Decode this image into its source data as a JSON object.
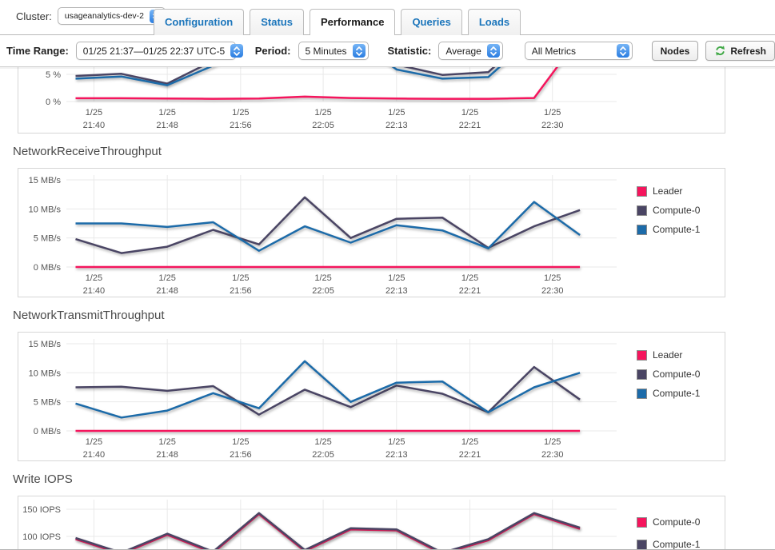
{
  "header": {
    "cluster_label": "Cluster:",
    "cluster_value": "usageanalytics-dev-2",
    "tabs": [
      {
        "label": "Configuration",
        "active": false
      },
      {
        "label": "Status",
        "active": false
      },
      {
        "label": "Performance",
        "active": true
      },
      {
        "label": "Queries",
        "active": false
      },
      {
        "label": "Loads",
        "active": false
      }
    ]
  },
  "toolbar": {
    "time_range_label": "Time Range:",
    "time_range_value": "01/25 21:37—01/25 22:37 UTC-5",
    "period_label": "Period:",
    "period_value": "5 Minutes",
    "statistic_label": "Statistic:",
    "statistic_value": "Average",
    "metrics_value": "All Metrics",
    "nodes_button": "Nodes",
    "refresh_button": "Refresh"
  },
  "colors": {
    "leader": "#f5155d",
    "compute0": "#4a4564",
    "compute1": "#1c6ba9",
    "grid": "#e9e9e9",
    "axis_text": "#555555",
    "tab_link": "#1b75bb"
  },
  "x_ticks": [
    {
      "date": "1/25",
      "time": "21:40",
      "minute": 3
    },
    {
      "date": "1/25",
      "time": "21:48",
      "minute": 11
    },
    {
      "date": "1/25",
      "time": "21:56",
      "minute": 19
    },
    {
      "date": "1/25",
      "time": "22:05",
      "minute": 28
    },
    {
      "date": "1/25",
      "time": "22:13",
      "minute": 36
    },
    {
      "date": "1/25",
      "time": "22:21",
      "minute": 44
    },
    {
      "date": "1/25",
      "time": "22:30",
      "minute": 53
    }
  ],
  "sample_minutes": [
    1,
    6,
    11,
    16,
    21,
    26,
    31,
    36,
    41,
    46,
    51,
    56
  ],
  "chart_data": [
    {
      "type": "line",
      "title": "",
      "clip": "top",
      "y_unit": "%",
      "y_ticks": [
        {
          "value": 5,
          "label": "5 %"
        },
        {
          "value": 0,
          "label": "0 %"
        }
      ],
      "legend": [],
      "series": [
        {
          "name": "Leader",
          "color": "leader",
          "values": [
            0.6,
            0.6,
            0.55,
            0.5,
            0.55,
            0.9,
            0.65,
            0.55,
            0.5,
            0.5,
            0.65,
            12
          ]
        },
        {
          "name": "Compute-0",
          "color": "compute0",
          "values": [
            4.7,
            5.1,
            3.3,
            7.5,
            13,
            13,
            13,
            6.8,
            4.9,
            5.4,
            13,
            13
          ]
        },
        {
          "name": "Compute-1",
          "color": "compute1",
          "values": [
            4.2,
            4.6,
            3.0,
            6.6,
            12,
            12,
            12,
            5.9,
            4.2,
            4.5,
            12,
            12
          ]
        }
      ]
    },
    {
      "type": "line",
      "title": "NetworkReceiveThroughput",
      "clip": "none",
      "y_unit": "MB/s",
      "y_ticks": [
        {
          "value": 15,
          "label": "15 MB/s"
        },
        {
          "value": 10,
          "label": "10 MB/s"
        },
        {
          "value": 5,
          "label": "5 MB/s"
        },
        {
          "value": 0,
          "label": "0 MB/s"
        }
      ],
      "legend": [
        "Leader",
        "Compute-0",
        "Compute-1"
      ],
      "series": [
        {
          "name": "Leader",
          "color": "leader",
          "values": [
            0,
            0,
            0,
            0,
            0,
            0,
            0,
            0,
            0,
            0,
            0,
            0
          ]
        },
        {
          "name": "Compute-0",
          "color": "compute0",
          "values": [
            4.8,
            2.4,
            3.5,
            6.4,
            3.9,
            12,
            5,
            8.3,
            8.5,
            3.3,
            7,
            9.8
          ]
        },
        {
          "name": "Compute-1",
          "color": "compute1",
          "values": [
            7.5,
            7.5,
            6.9,
            7.7,
            2.8,
            7,
            4.2,
            7.2,
            6.3,
            3.2,
            11.2,
            5.5
          ]
        }
      ]
    },
    {
      "type": "line",
      "title": "NetworkTransmitThroughput",
      "clip": "none",
      "y_unit": "MB/s",
      "y_ticks": [
        {
          "value": 15,
          "label": "15 MB/s"
        },
        {
          "value": 10,
          "label": "10 MB/s"
        },
        {
          "value": 5,
          "label": "5 MB/s"
        },
        {
          "value": 0,
          "label": "0 MB/s"
        }
      ],
      "legend": [
        "Leader",
        "Compute-0",
        "Compute-1"
      ],
      "series": [
        {
          "name": "Leader",
          "color": "leader",
          "values": [
            0,
            0,
            0,
            0,
            0,
            0,
            0,
            0,
            0,
            0,
            0,
            0
          ]
        },
        {
          "name": "Compute-0",
          "color": "compute0",
          "values": [
            7.5,
            7.6,
            6.9,
            7.7,
            2.8,
            7.1,
            4.1,
            7.8,
            6.4,
            3.2,
            11,
            5.4
          ]
        },
        {
          "name": "Compute-1",
          "color": "compute1",
          "values": [
            4.7,
            2.3,
            3.5,
            6.5,
            3.9,
            12,
            5,
            8.3,
            8.5,
            3.2,
            7.5,
            10
          ]
        }
      ]
    },
    {
      "type": "line",
      "title": "Write IOPS",
      "clip": "bottom",
      "y_unit": "IOPS",
      "y_ticks": [
        {
          "value": 150,
          "label": "150 IOPS"
        },
        {
          "value": 100,
          "label": "100 IOPS"
        }
      ],
      "legend": [
        "Compute-0",
        "Compute-1"
      ],
      "series": [
        {
          "name": "Compute-0",
          "color": "leader",
          "values": [
            95,
            68,
            103,
            70,
            141,
            73,
            113,
            111,
            68,
            93,
            141,
            114
          ]
        },
        {
          "name": "Compute-1",
          "color": "compute0",
          "values": [
            97,
            70,
            105,
            72,
            143,
            75,
            115,
            113,
            70,
            95,
            143,
            116
          ]
        }
      ]
    }
  ]
}
